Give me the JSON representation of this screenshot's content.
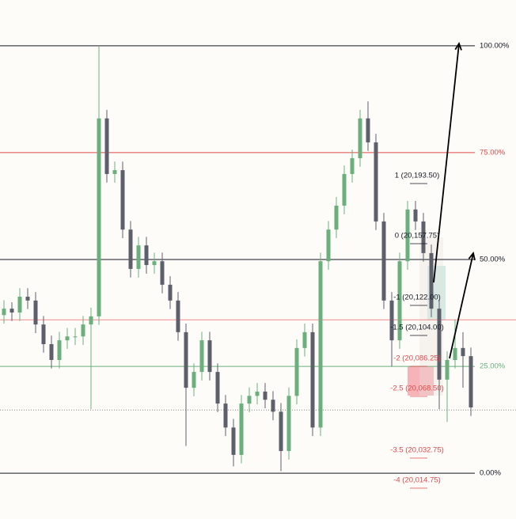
{
  "chart_data": {
    "type": "candlestick",
    "ylim": [
      -10.7,
      110.7
    ],
    "up_color": "#6aaf7c",
    "down_color": "#5d606b",
    "levels": [
      {
        "value": 100,
        "label": "100.00%",
        "color": "#131722"
      },
      {
        "value": 75,
        "label": "75.00%",
        "color": "#e04a4a"
      },
      {
        "value": 50,
        "label": "50.00%",
        "color": "#131722"
      },
      {
        "value": 25,
        "label": "25.00%",
        "color": "#6aaf7c"
      },
      {
        "value": 0,
        "label": "0.00%",
        "color": "#131722"
      }
    ],
    "lines": [
      {
        "value": 35.9,
        "color": "#f08a8a",
        "dash": "none"
      },
      {
        "value": 14.8,
        "color": "#888888",
        "dash": "1 2"
      }
    ],
    "annotations": [
      {
        "label": "1 (20,193.50)",
        "color": "#131722"
      },
      {
        "label": "0 (20,157.75)",
        "color": "#131722"
      },
      {
        "label": "-1 (20,122.00)",
        "color": "#131722"
      },
      {
        "label": "-1.5 (20,104.00)",
        "color": "#131722"
      },
      {
        "label": "-2 (20,086.25)",
        "color": "#e04a4a"
      },
      {
        "label": "-2.5 (20,068.50)",
        "color": "#e04a4a"
      },
      {
        "label": "-3.5 (20,032.75)",
        "color": "#e04a4a"
      },
      {
        "label": "-4 (20,014.75)",
        "color": "#e04a4a"
      }
    ],
    "candles": [
      [
        37.0,
        40.5,
        35.0,
        38.5
      ],
      [
        38.5,
        40.0,
        35.6,
        37.6
      ],
      [
        37.6,
        43.3,
        35.6,
        41.3
      ],
      [
        41.3,
        43.3,
        38.4,
        40.4
      ],
      [
        40.4,
        42.4,
        32.8,
        34.8
      ],
      [
        34.8,
        36.8,
        28.2,
        30.2
      ],
      [
        30.2,
        32.2,
        24.5,
        26.5
      ],
      [
        26.5,
        33.1,
        24.5,
        31.1
      ],
      [
        31.1,
        34.0,
        29.1,
        32.0
      ],
      [
        32.0,
        34.0,
        30.0,
        32.0
      ],
      [
        32.0,
        36.8,
        30.0,
        34.8
      ],
      [
        34.8,
        38.7,
        15.0,
        36.7
      ],
      [
        36.7,
        100,
        34.7,
        83.0
      ],
      [
        83.0,
        85.0,
        68.0,
        70.0
      ],
      [
        70.0,
        72.9,
        68.0,
        70.9
      ],
      [
        70.9,
        72.9,
        55.0,
        57.0
      ],
      [
        57.0,
        59.0,
        45.8,
        47.8
      ],
      [
        47.8,
        55.3,
        45.8,
        53.3
      ],
      [
        53.3,
        55.3,
        46.7,
        48.7
      ],
      [
        48.7,
        51.6,
        46.7,
        49.6
      ],
      [
        49.6,
        51.6,
        42.1,
        44.1
      ],
      [
        44.1,
        46.1,
        38.4,
        40.4
      ],
      [
        40.4,
        42.4,
        31.0,
        33.0
      ],
      [
        33.0,
        35.0,
        6.4,
        20.0
      ],
      [
        20.0,
        25.7,
        18.0,
        23.7
      ],
      [
        23.7,
        33.1,
        21.7,
        31.1
      ],
      [
        31.1,
        33.1,
        21.7,
        23.7
      ],
      [
        23.7,
        25.7,
        14.3,
        16.3
      ],
      [
        16.3,
        18.3,
        8.7,
        10.7
      ],
      [
        10.7,
        12.7,
        1.6,
        4.3
      ],
      [
        4.3,
        18.3,
        2.3,
        16.3
      ],
      [
        16.3,
        20.1,
        14.3,
        18.1
      ],
      [
        18.1,
        21.1,
        16.1,
        19.1
      ],
      [
        19.1,
        21.1,
        15.2,
        17.2
      ],
      [
        17.2,
        19.2,
        12.4,
        14.4
      ],
      [
        14.4,
        16.4,
        0.5,
        5.2
      ],
      [
        5.2,
        20.1,
        3.2,
        18.1
      ],
      [
        18.1,
        31.3,
        16.1,
        29.3
      ],
      [
        29.3,
        35.0,
        27.3,
        33.0
      ],
      [
        33.0,
        35.0,
        8.7,
        10.7
      ],
      [
        10.7,
        51.6,
        8.7,
        49.6
      ],
      [
        49.6,
        59.0,
        47.6,
        57.0
      ],
      [
        57.0,
        64.6,
        55.0,
        62.6
      ],
      [
        62.6,
        72.0,
        60.6,
        70.0
      ],
      [
        70.0,
        75.7,
        68.0,
        73.7
      ],
      [
        73.7,
        85.0,
        71.7,
        83.0
      ],
      [
        83.0,
        87.0,
        75.4,
        77.4
      ],
      [
        77.4,
        79.4,
        56.9,
        58.9
      ],
      [
        58.9,
        60.9,
        38.4,
        40.4
      ],
      [
        40.4,
        42.4,
        25.0,
        31.1
      ],
      [
        31.1,
        51.6,
        29.1,
        49.6
      ],
      [
        49.6,
        63.7,
        47.6,
        61.7
      ],
      [
        61.7,
        63.7,
        56.9,
        58.9
      ],
      [
        58.9,
        60.9,
        49.5,
        51.5
      ],
      [
        51.5,
        53.5,
        36.5,
        38.5
      ],
      [
        38.5,
        40.5,
        15.0,
        21.9
      ],
      [
        21.9,
        28.5,
        12.0,
        26.5
      ],
      [
        26.5,
        36.0,
        24.5,
        29.3
      ],
      [
        29.3,
        33.0,
        20.0,
        27.4
      ],
      [
        27.4,
        29.4,
        13.4,
        15.4
      ]
    ]
  }
}
